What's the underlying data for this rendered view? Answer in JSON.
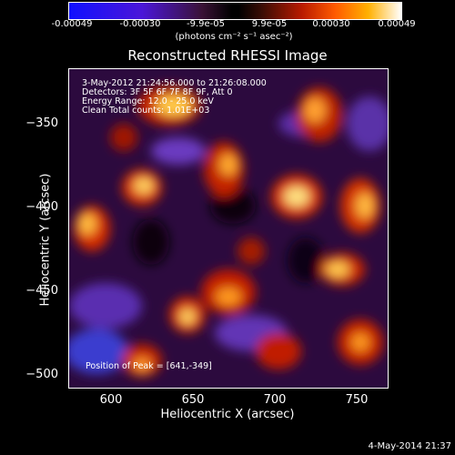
{
  "colorbar": {
    "ticks": [
      "-0.00049",
      "-0.00030",
      "-9.9e-05",
      "9.9e-05",
      "0.00030",
      "0.00049"
    ],
    "units": "(photons cm⁻² s⁻¹ asec⁻²)"
  },
  "title": "Reconstructed RHESSI Image",
  "annotations": {
    "time_range": "3-May-2012 21:24:56.000 to 21:26:08.000",
    "detectors": "Detectors: 3F 5F 6F 7F 8F 9F, Att 0",
    "energy": "Energy Range: 12.0 - 25.0 keV",
    "clean": "Clean     Total counts: 1.01E+03",
    "peak": "Position of Peak = [641,-349]"
  },
  "axes": {
    "xlabel": "Heliocentric X (arcsec)",
    "ylabel": "Heliocentric Y (arcsec)",
    "xticks": [
      "600",
      "650",
      "700",
      "750"
    ],
    "yticks": [
      "−350",
      "−400",
      "−450",
      "−500"
    ]
  },
  "timestamp": "4-May-2014 21:37",
  "colors": {
    "background": "#000000",
    "low": "#2a0638",
    "mid": "#b81a00",
    "high": "#ffd23c"
  }
}
